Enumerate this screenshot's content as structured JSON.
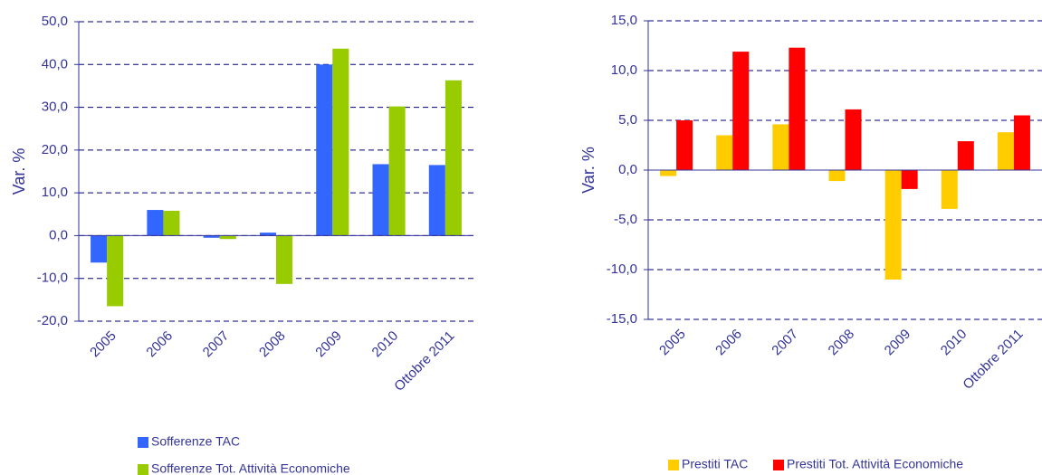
{
  "chart_data": [
    {
      "type": "bar",
      "y_label": "Var. %",
      "categories": [
        "2005",
        "2006",
        "2007",
        "2008",
        "2009",
        "2010",
        "Ottobre 2011"
      ],
      "series": [
        {
          "name": "Sofferenze TAC",
          "color": "#3366ff",
          "values": [
            -6.3,
            6.0,
            -0.5,
            0.7,
            40.0,
            16.7,
            16.5
          ]
        },
        {
          "name": "Sofferenze Tot. Attività Economiche",
          "color": "#99cc00",
          "values": [
            -16.5,
            5.8,
            -0.8,
            -11.3,
            43.7,
            30.2,
            36.3
          ]
        }
      ],
      "ylim": [
        -20,
        50
      ],
      "yticks": [
        {
          "value": -20,
          "label": "-20,0"
        },
        {
          "value": -10,
          "label": "-10,0"
        },
        {
          "value": 0,
          "label": "0,0"
        },
        {
          "value": 10,
          "label": "10,0"
        },
        {
          "value": 20,
          "label": "20,0"
        },
        {
          "value": 30,
          "label": "30,0"
        },
        {
          "value": 40,
          "label": "40,0"
        },
        {
          "value": 50,
          "label": "50,0"
        }
      ],
      "grid": true,
      "legend": "bottom"
    },
    {
      "type": "bar",
      "y_label": "Var. %",
      "categories": [
        "2005",
        "2006",
        "2007",
        "2008",
        "2009",
        "2010",
        "Ottobre 2011"
      ],
      "series": [
        {
          "name": "Prestiti TAC",
          "color": "#ffcc00",
          "values": [
            -0.6,
            3.5,
            4.6,
            -1.1,
            -11.0,
            -3.9,
            3.8
          ]
        },
        {
          "name": "Prestiti Tot. Attività Economiche",
          "color": "#ff0000",
          "values": [
            5.0,
            11.9,
            12.3,
            6.1,
            -1.9,
            2.9,
            5.5
          ]
        }
      ],
      "ylim": [
        -15,
        15
      ],
      "yticks": [
        {
          "value": -15,
          "label": "-15,0"
        },
        {
          "value": -10,
          "label": "-10,0"
        },
        {
          "value": -5,
          "label": "-5,0"
        },
        {
          "value": 0,
          "label": "0,0"
        },
        {
          "value": 5,
          "label": "5,0"
        },
        {
          "value": 10,
          "label": "10,0"
        },
        {
          "value": 15,
          "label": "15,0"
        }
      ],
      "grid": true,
      "legend": "bottom"
    }
  ]
}
